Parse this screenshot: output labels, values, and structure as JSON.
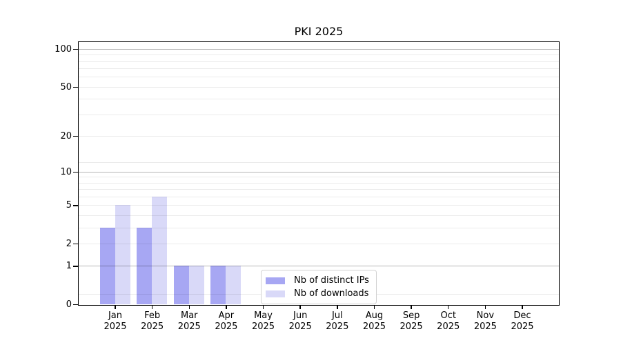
{
  "title": "PKI 2025",
  "chart_data": {
    "type": "bar",
    "title": "PKI 2025",
    "categories": [
      "Jan",
      "Feb",
      "Mar",
      "Apr",
      "May",
      "Jun",
      "Jul",
      "Aug",
      "Sep",
      "Oct",
      "Nov",
      "Dec"
    ],
    "year_label": "2025",
    "series": [
      {
        "name": "Nb of distinct IPs",
        "color": "#a7a7f3",
        "values": [
          3,
          3,
          1,
          1,
          0,
          0,
          0,
          0,
          0,
          0,
          0,
          0
        ]
      },
      {
        "name": "Nb of downloads",
        "color": "#d9d9f8",
        "values": [
          5,
          6,
          1,
          1,
          0,
          0,
          0,
          0,
          0,
          0,
          0,
          0
        ]
      }
    ],
    "y_axis": {
      "scale": "log10(1+v)",
      "ticks": [
        100,
        50,
        20,
        10,
        5,
        2,
        1,
        0
      ],
      "ylim": [
        0,
        113
      ],
      "decade_gridlines": [
        1,
        10,
        100
      ],
      "minor_gridlines": [
        0.2,
        2,
        3,
        4,
        5,
        6,
        7,
        8,
        9,
        12,
        20,
        30,
        40,
        50,
        60,
        70,
        80,
        90
      ]
    },
    "x_axis": {
      "grid": false
    },
    "legend": {
      "position": "lower center"
    },
    "colors": {
      "spine": "#000000",
      "decade_grid": "#b5b5b5",
      "minor_grid": "#ebebeb"
    }
  }
}
